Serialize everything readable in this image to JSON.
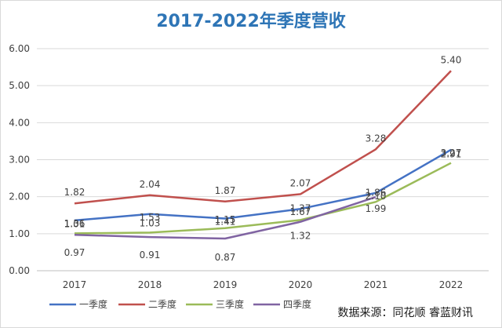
{
  "chart_data": {
    "type": "line",
    "title": "2017-2022年季度营收",
    "categories": [
      "2017",
      "2018",
      "2019",
      "2020",
      "2021",
      "2022"
    ],
    "ylim": [
      0,
      6
    ],
    "yticks": [
      "0.00",
      "1.00",
      "2.00",
      "3.00",
      "4.00",
      "5.00",
      "6.00"
    ],
    "grid": true,
    "legend_position": "bottom-left",
    "series": [
      {
        "name": "一季度",
        "color": "#4472c4",
        "values": [
          1.36,
          1.53,
          1.41,
          1.67,
          2.1,
          3.27
        ],
        "labels": [
          "1.36",
          "1.53",
          "1.41",
          "1.67",
          "2.10",
          "3.27"
        ]
      },
      {
        "name": "二季度",
        "color": "#c0504d",
        "values": [
          1.82,
          2.04,
          1.87,
          2.07,
          3.28,
          5.4
        ],
        "labels": [
          "1.82",
          "2.04",
          "1.87",
          "2.07",
          "3.28",
          "5.40"
        ]
      },
      {
        "name": "三季度",
        "color": "#9bbb59",
        "values": [
          1.01,
          1.03,
          1.15,
          1.37,
          1.86,
          2.91
        ],
        "labels": [
          "1.01",
          "1.03",
          "1.15",
          "1.37",
          "1.86",
          "2.91"
        ]
      },
      {
        "name": "四季度",
        "color": "#8064a2",
        "values": [
          0.97,
          0.91,
          0.87,
          1.32,
          1.99,
          null
        ],
        "labels": [
          "0.97",
          "0.91",
          "0.87",
          "1.32",
          "1.99",
          null
        ]
      }
    ]
  },
  "source_text": "数据来源：同花顺 睿蓝财讯"
}
